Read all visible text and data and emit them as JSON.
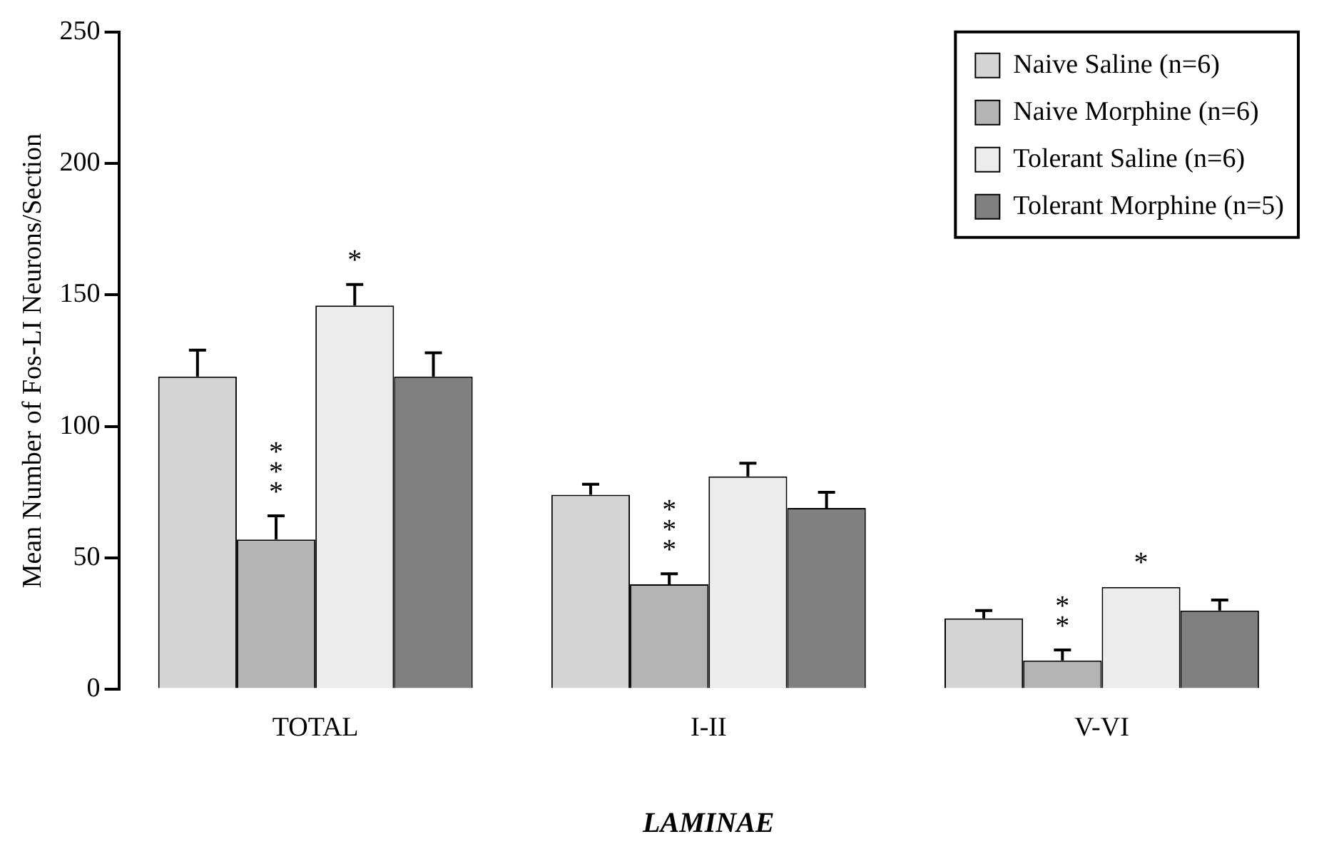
{
  "chart_data": {
    "type": "bar",
    "xlabel": "LAMINAE",
    "ylabel": "Mean Number of Fos-LI Neurons/Section",
    "categories": [
      "TOTAL",
      "I-II",
      "V-VI"
    ],
    "series": [
      {
        "name": "Naive Saline (n=6)",
        "color": "#d4d4d4",
        "values": [
          119,
          74,
          27
        ],
        "errors": [
          [
            119,
            129
          ],
          [
            74,
            78
          ],
          [
            27,
            30
          ]
        ]
      },
      {
        "name": "Naive Morphine (n=6)",
        "color": "#b4b4b4",
        "values": [
          57,
          40,
          11
        ],
        "errors": [
          [
            57,
            66
          ],
          [
            40,
            44
          ],
          [
            11,
            15
          ]
        ]
      },
      {
        "name": "Tolerant Saline (n=6)",
        "color": "#ececec",
        "values": [
          146,
          81,
          39
        ],
        "errors": [
          [
            146,
            154
          ],
          [
            81,
            86
          ],
          null
        ]
      },
      {
        "name": "Tolerant Morphine (n=5)",
        "color": "#808080",
        "values": [
          119,
          69,
          30
        ],
        "errors": [
          [
            119,
            128
          ],
          [
            69,
            75
          ],
          [
            30,
            34
          ]
        ]
      }
    ],
    "ylim": [
      0,
      250
    ],
    "yticks": [
      0,
      50,
      100,
      150,
      200,
      250
    ],
    "grid": false,
    "legend": "top right",
    "annotations": [
      {
        "text": "*",
        "x": "TOTAL",
        "y": 146
      },
      {
        "text": "***",
        "x": "TOTAL",
        "y": 66
      },
      {
        "text": "***",
        "x": "I-II",
        "y": 44
      },
      {
        "text": "**",
        "x": "V-VI",
        "y": 15
      },
      {
        "text": "*",
        "x": "V-VI",
        "y": 39
      }
    ]
  }
}
